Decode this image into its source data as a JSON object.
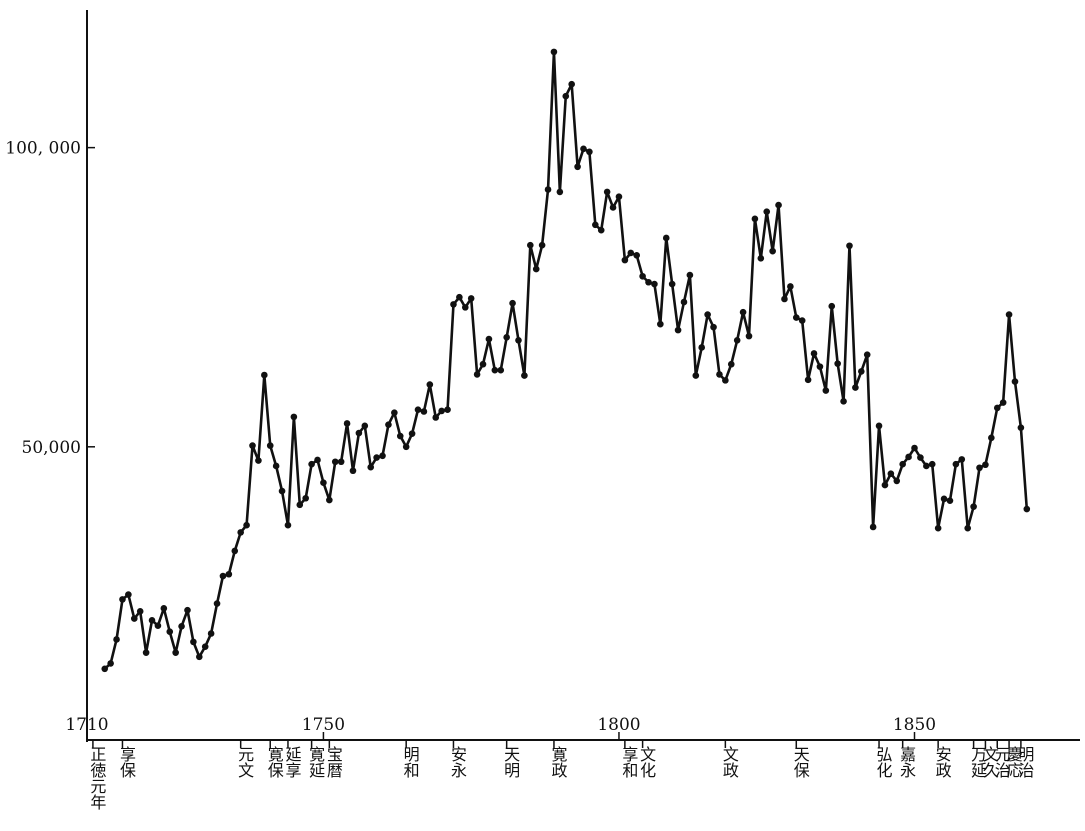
{
  "chart_data": {
    "type": "line",
    "color": "#111111",
    "x": [
      1713,
      1714,
      1715,
      1716,
      1717,
      1718,
      1719,
      1720,
      1721,
      1722,
      1723,
      1724,
      1725,
      1726,
      1727,
      1728,
      1729,
      1730,
      1731,
      1732,
      1733,
      1734,
      1735,
      1736,
      1737,
      1738,
      1739,
      1740,
      1741,
      1742,
      1743,
      1744,
      1745,
      1746,
      1747,
      1748,
      1749,
      1750,
      1751,
      1752,
      1753,
      1754,
      1755,
      1756,
      1757,
      1758,
      1759,
      1760,
      1761,
      1762,
      1763,
      1764,
      1765,
      1766,
      1767,
      1768,
      1769,
      1770,
      1771,
      1772,
      1773,
      1774,
      1775,
      1776,
      1777,
      1778,
      1779,
      1780,
      1781,
      1782,
      1783,
      1784,
      1785,
      1786,
      1787,
      1788,
      1789,
      1790,
      1791,
      1792,
      1793,
      1794,
      1795,
      1796,
      1797,
      1798,
      1799,
      1800,
      1801,
      1802,
      1803,
      1804,
      1805,
      1806,
      1807,
      1808,
      1809,
      1810,
      1811,
      1812,
      1813,
      1814,
      1815,
      1816,
      1817,
      1818,
      1819,
      1820,
      1821,
      1822,
      1823,
      1824,
      1825,
      1826,
      1827,
      1828,
      1829,
      1830,
      1831,
      1832,
      1833,
      1834,
      1835,
      1836,
      1837,
      1838,
      1839,
      1840,
      1841,
      1842,
      1843,
      1844,
      1845,
      1846,
      1847,
      1848,
      1849,
      1850,
      1851,
      1852,
      1853,
      1854,
      1855,
      1856,
      1857,
      1858,
      1859,
      1860,
      1861,
      1862,
      1863,
      1864,
      1865,
      1866,
      1867,
      1868,
      1869
    ],
    "values": [
      12900,
      13800,
      17800,
      24500,
      25300,
      21300,
      22500,
      15600,
      21000,
      20100,
      23000,
      19100,
      15600,
      20000,
      22700,
      17400,
      14900,
      16600,
      18800,
      23800,
      28400,
      28700,
      32600,
      35700,
      36900,
      50200,
      47700,
      62000,
      50200,
      46800,
      42600,
      36900,
      55000,
      40300,
      41400,
      47100,
      47800,
      44000,
      41100,
      47500,
      47500,
      53900,
      46000,
      52300,
      53500,
      46600,
      48200,
      48500,
      53700,
      55700,
      51800,
      50000,
      52200,
      56200,
      55900,
      60400,
      54900,
      56000,
      56200,
      73800,
      75000,
      73300,
      74800,
      62100,
      63800,
      68000,
      62800,
      62800,
      68300,
      74000,
      67800,
      61900,
      83700,
      79700,
      83700,
      93000,
      116000,
      92600,
      108600,
      110600,
      96800,
      99800,
      99300,
      87100,
      86200,
      92600,
      90000,
      91800,
      81200,
      82400,
      82000,
      78500,
      77500,
      77200,
      70500,
      84900,
      77200,
      69500,
      74200,
      78700,
      61900,
      66600,
      72100,
      70000,
      62100,
      61100,
      63800,
      67800,
      72500,
      68500,
      88100,
      81500,
      89300,
      82700,
      90400,
      74700,
      76800,
      71600,
      71100,
      61200,
      65600,
      63400,
      59400,
      73500,
      63900,
      57600,
      83600,
      59900,
      62600,
      65400,
      36600,
      53500,
      43600,
      45500,
      44300,
      47100,
      48300,
      49800,
      48200,
      46800,
      47100,
      36400,
      41300,
      41000,
      47100,
      47900,
      36400,
      40000,
      46500,
      47000,
      51500,
      56500,
      57400,
      72100,
      60900,
      53200,
      39600
    ],
    "xlim": [
      1710,
      1878
    ],
    "ylim": [
      1000,
      123000
    ],
    "xticks": [
      1710,
      1750,
      1800,
      1850
    ],
    "yticks": [
      {
        "value": 50000,
        "label": "50,000"
      },
      {
        "value": 100000,
        "label": "100, 000"
      }
    ],
    "eras": [
      {
        "year": 1711,
        "label": "正徳元年"
      },
      {
        "year": 1716,
        "label": "享保"
      },
      {
        "year": 1736,
        "label": "元文"
      },
      {
        "year": 1741,
        "label": "寛保"
      },
      {
        "year": 1744,
        "label": "延享"
      },
      {
        "year": 1748,
        "label": "寛延"
      },
      {
        "year": 1751,
        "label": "宝暦"
      },
      {
        "year": 1764,
        "label": "明和"
      },
      {
        "year": 1772,
        "label": "安永"
      },
      {
        "year": 1781,
        "label": "天明"
      },
      {
        "year": 1789,
        "label": "寛政"
      },
      {
        "year": 1801,
        "label": "享和"
      },
      {
        "year": 1804,
        "label": "文化"
      },
      {
        "year": 1818,
        "label": "文政"
      },
      {
        "year": 1830,
        "label": "天保"
      },
      {
        "year": 1844,
        "label": "弘化"
      },
      {
        "year": 1848,
        "label": "嘉永"
      },
      {
        "year": 1854,
        "label": "安政"
      },
      {
        "year": 1860,
        "label": "万延"
      },
      {
        "year": 1862,
        "label": "文久"
      },
      {
        "year": 1864,
        "label": "元治"
      },
      {
        "year": 1866,
        "label": "慶応"
      },
      {
        "year": 1868,
        "label": "明治"
      }
    ]
  }
}
